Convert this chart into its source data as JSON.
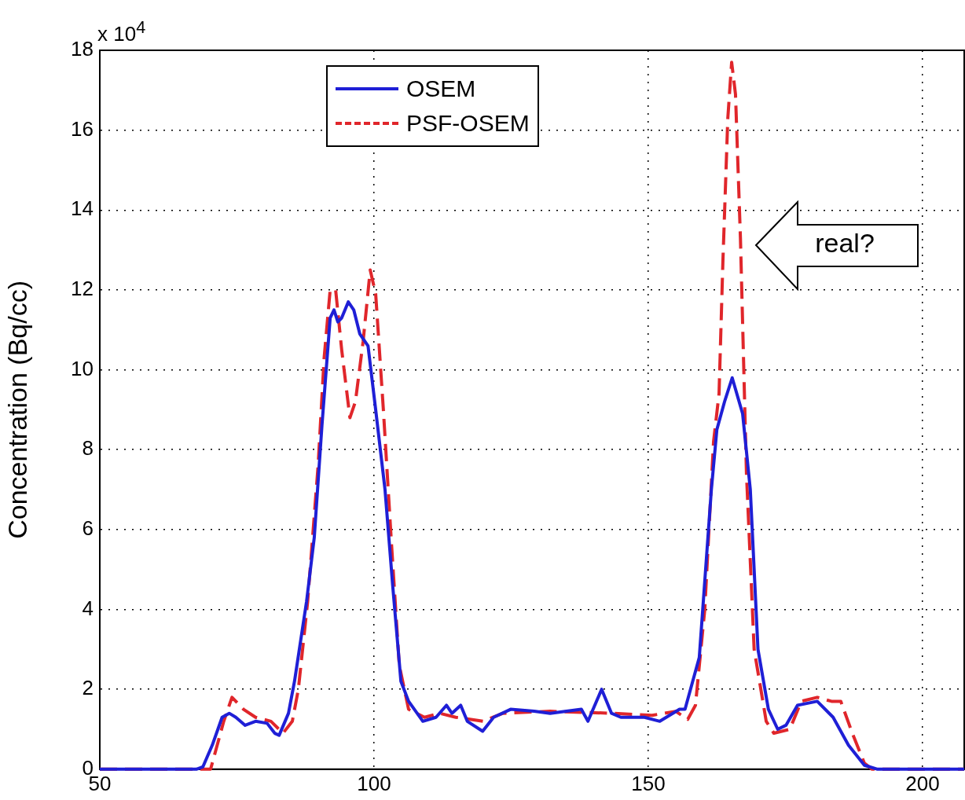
{
  "chart_data": {
    "type": "line",
    "ylabel": "Concentration (Bq/cc)",
    "annotations": [
      "x 10$^{4}$",
      "real?"
    ],
    "xlim": [
      50,
      207.6
    ],
    "xticks": [
      50,
      100,
      150,
      200
    ],
    "ylim": [
      0,
      18
    ],
    "yticks": [
      0,
      2,
      4,
      6,
      8,
      10,
      12,
      14,
      16,
      18
    ],
    "grid": true,
    "legend": "top",
    "marker": "none",
    "series": [
      {
        "name": "OSEM",
        "color": "#1f1fd6",
        "line_style": "solid",
        "x": [
          50,
          67.6,
          68.8,
          70.5,
          72.3,
          73.6,
          74.8,
          76.5,
          78.4,
          80.5,
          81.9,
          82.7,
          84.4,
          85.5,
          87.7,
          89.1,
          90.5,
          92.0,
          92.7,
          93.4,
          94.1,
          95.3,
          96.3,
          97.4,
          98.9,
          100.3,
          102.0,
          103.4,
          104.9,
          106.3,
          108.9,
          111.3,
          113.2,
          114.2,
          115.8,
          117.0,
          119.8,
          121.8,
          124.9,
          129.2,
          132.1,
          137.8,
          139.0,
          141.5,
          143.3,
          145.0,
          149.3,
          152.1,
          155.7,
          156.7,
          159.3,
          161.5,
          162.5,
          163.9,
          165.3,
          167.2,
          168.6,
          170.0,
          171.9,
          173.6,
          175.1,
          177.2,
          180.8,
          183.7,
          186.5,
          189.4,
          191.8,
          207.6
        ],
        "values": [
          0,
          0,
          0.06,
          0.6,
          1.3,
          1.4,
          1.3,
          1.1,
          1.2,
          1.15,
          0.9,
          0.85,
          1.4,
          2.2,
          4.2,
          5.8,
          8.6,
          11.3,
          11.5,
          11.2,
          11.3,
          11.7,
          11.5,
          10.9,
          10.6,
          9.0,
          7.0,
          4.6,
          2.2,
          1.7,
          1.2,
          1.3,
          1.6,
          1.4,
          1.6,
          1.2,
          0.95,
          1.3,
          1.5,
          1.45,
          1.4,
          1.5,
          1.2,
          2.0,
          1.4,
          1.3,
          1.3,
          1.2,
          1.5,
          1.5,
          2.8,
          7.0,
          8.5,
          9.2,
          9.8,
          8.9,
          7.0,
          3.0,
          1.5,
          1.0,
          1.1,
          1.6,
          1.7,
          1.3,
          0.6,
          0.1,
          0,
          0
        ]
      },
      {
        "name": "PSF-OSEM",
        "color": "#e0262b",
        "line_style": "dashed",
        "x": [
          50,
          70.2,
          72.6,
          74.1,
          76.2,
          78.4,
          81.2,
          83.4,
          85.1,
          86.2,
          87.9,
          89.8,
          90.9,
          92.0,
          93.0,
          94.1,
          95.6,
          96.6,
          98.0,
          99.3,
          100.3,
          101.7,
          103.2,
          104.6,
          106.3,
          109.2,
          112.0,
          114.9,
          119.9,
          123.5,
          132.1,
          143.6,
          150.7,
          155.0,
          157.2,
          158.6,
          160.3,
          161.9,
          162.9,
          163.6,
          164.5,
          165.2,
          165.9,
          166.8,
          167.9,
          169.3,
          171.5,
          172.9,
          175.8,
          177.9,
          180.8,
          183.4,
          185.1,
          187.2,
          189.4,
          190.8,
          207.6
        ],
        "values": [
          0,
          0,
          1.2,
          1.8,
          1.5,
          1.3,
          1.2,
          0.9,
          1.2,
          2.0,
          4.2,
          7.6,
          10.3,
          12.0,
          12.0,
          10.5,
          8.8,
          9.2,
          10.7,
          12.5,
          11.9,
          9.0,
          5.6,
          2.6,
          1.5,
          1.3,
          1.4,
          1.3,
          1.2,
          1.4,
          1.45,
          1.4,
          1.35,
          1.45,
          1.25,
          1.6,
          4.0,
          8.2,
          9.4,
          12.7,
          16.3,
          17.7,
          16.9,
          13.3,
          7.4,
          3.0,
          1.2,
          0.9,
          1.0,
          1.7,
          1.8,
          1.7,
          1.7,
          0.9,
          0.15,
          0,
          0
        ]
      }
    ]
  }
}
